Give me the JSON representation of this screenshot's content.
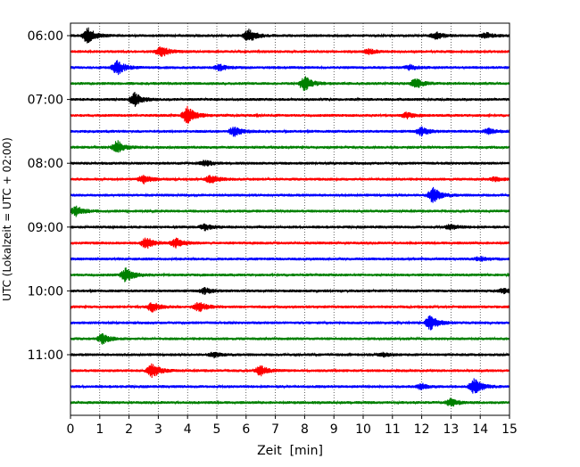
{
  "chart_data": {
    "type": "line",
    "subtype": "helicorder",
    "title": "",
    "xlabel": "Zeit  [min]",
    "ylabel": "UTC (Lokalzeit = UTC + 02:00)",
    "xlim": [
      0,
      15
    ],
    "x_ticks": [
      0,
      1,
      2,
      3,
      4,
      5,
      6,
      7,
      8,
      9,
      10,
      11,
      12,
      13,
      14,
      15
    ],
    "y_tick_labels": [
      "06:00",
      "07:00",
      "08:00",
      "09:00",
      "10:00",
      "11:00"
    ],
    "grid": "vertical dotted at every minute",
    "legend": "none",
    "trace_colors": [
      "#000000",
      "#ff0000",
      "#0000ff",
      "#008000"
    ],
    "trace_interval_min": 15,
    "traces": [
      {
        "start": "06:00",
        "events": [
          [
            0.6,
            1.0
          ],
          [
            6.1,
            0.8
          ],
          [
            12.5,
            0.4
          ],
          [
            14.2,
            0.35
          ]
        ]
      },
      {
        "start": "06:15",
        "events": [
          [
            3.1,
            0.7
          ],
          [
            10.2,
            0.3
          ]
        ]
      },
      {
        "start": "06:30",
        "events": [
          [
            1.6,
            0.9
          ],
          [
            5.1,
            0.35
          ],
          [
            11.6,
            0.3
          ]
        ]
      },
      {
        "start": "06:45",
        "events": [
          [
            8.0,
            0.9
          ],
          [
            11.8,
            0.6
          ]
        ]
      },
      {
        "start": "07:00",
        "events": [
          [
            2.2,
            0.8
          ]
        ]
      },
      {
        "start": "07:15",
        "events": [
          [
            4.0,
            1.1
          ],
          [
            11.5,
            0.35
          ]
        ]
      },
      {
        "start": "07:30",
        "events": [
          [
            5.6,
            0.6
          ],
          [
            12.0,
            0.5
          ],
          [
            14.3,
            0.3
          ]
        ]
      },
      {
        "start": "07:45",
        "events": [
          [
            1.6,
            0.8
          ]
        ]
      },
      {
        "start": "08:00",
        "events": [
          [
            4.6,
            0.35
          ]
        ]
      },
      {
        "start": "08:15",
        "events": [
          [
            2.5,
            0.5
          ],
          [
            4.8,
            0.5
          ],
          [
            14.5,
            0.25
          ]
        ]
      },
      {
        "start": "08:30",
        "events": [
          [
            12.4,
            1.0
          ]
        ]
      },
      {
        "start": "08:45",
        "events": [
          [
            0.2,
            0.6
          ]
        ]
      },
      {
        "start": "09:00",
        "events": [
          [
            4.6,
            0.35
          ],
          [
            13.0,
            0.3
          ]
        ]
      },
      {
        "start": "09:15",
        "events": [
          [
            2.6,
            0.7
          ],
          [
            3.6,
            0.6
          ]
        ]
      },
      {
        "start": "09:30",
        "events": [
          [
            14.0,
            0.25
          ]
        ]
      },
      {
        "start": "09:45",
        "events": [
          [
            1.9,
            0.9
          ]
        ]
      },
      {
        "start": "10:00",
        "events": [
          [
            4.6,
            0.35
          ],
          [
            14.8,
            0.25
          ]
        ]
      },
      {
        "start": "10:15",
        "events": [
          [
            2.8,
            0.6
          ],
          [
            4.4,
            0.6
          ]
        ]
      },
      {
        "start": "10:30",
        "events": [
          [
            12.3,
            0.9
          ]
        ]
      },
      {
        "start": "10:45",
        "events": [
          [
            1.1,
            0.6
          ]
        ]
      },
      {
        "start": "11:00",
        "events": [
          [
            4.9,
            0.3
          ],
          [
            10.7,
            0.2
          ]
        ]
      },
      {
        "start": "11:15",
        "events": [
          [
            2.8,
            0.9
          ],
          [
            6.5,
            0.6
          ]
        ]
      },
      {
        "start": "11:30",
        "events": [
          [
            12.0,
            0.35
          ],
          [
            13.8,
            1.0
          ]
        ]
      },
      {
        "start": "11:45",
        "events": [
          [
            13.0,
            0.5
          ]
        ]
      }
    ]
  }
}
